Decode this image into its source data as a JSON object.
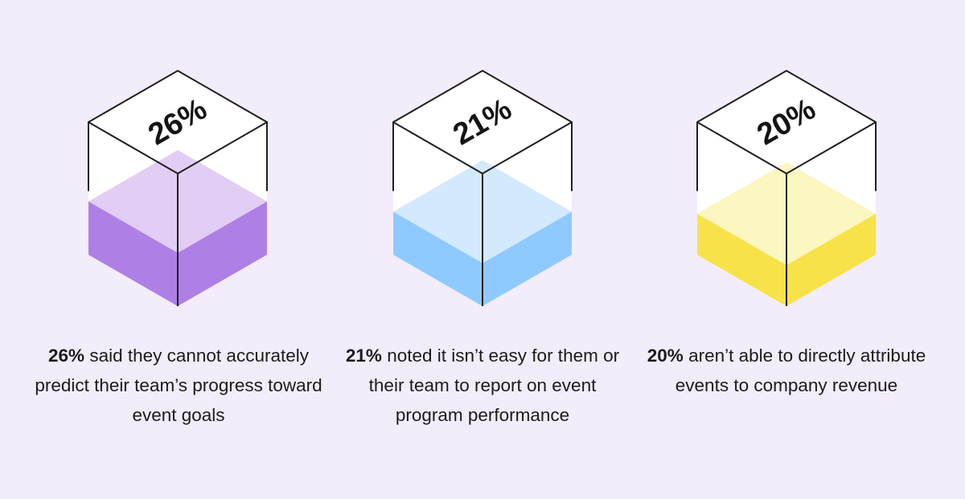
{
  "chart_data": {
    "type": "bar",
    "title": "",
    "categories": [
      "said they cannot accurately predict their team’s progress toward event goals",
      "noted it isn’t easy for them or their team to report on event program performance",
      "aren’t able to directly attribute events to company revenue"
    ],
    "values": [
      26,
      21,
      20
    ],
    "value_labels": [
      "26%",
      "21%",
      "20%"
    ],
    "colors": {
      "fill_top": [
        "#e2cdf4",
        "#d3e9fd",
        "#fcf6c0"
      ],
      "fill_side": [
        "#ae80e6",
        "#8fcaff",
        "#f7e24a"
      ],
      "outline": "#1e1e1e",
      "face": "#ffffff",
      "background": "#f3ecfb"
    }
  },
  "captions": [
    {
      "pct": "26%",
      "text": " said they cannot accurately predict their team’s progress toward event goals"
    },
    {
      "pct": "21%",
      "text": " noted it isn’t easy for them or their team to report on event program performance"
    },
    {
      "pct": "20%",
      "text": " aren’t able to directly attribute events to company revenue"
    }
  ]
}
